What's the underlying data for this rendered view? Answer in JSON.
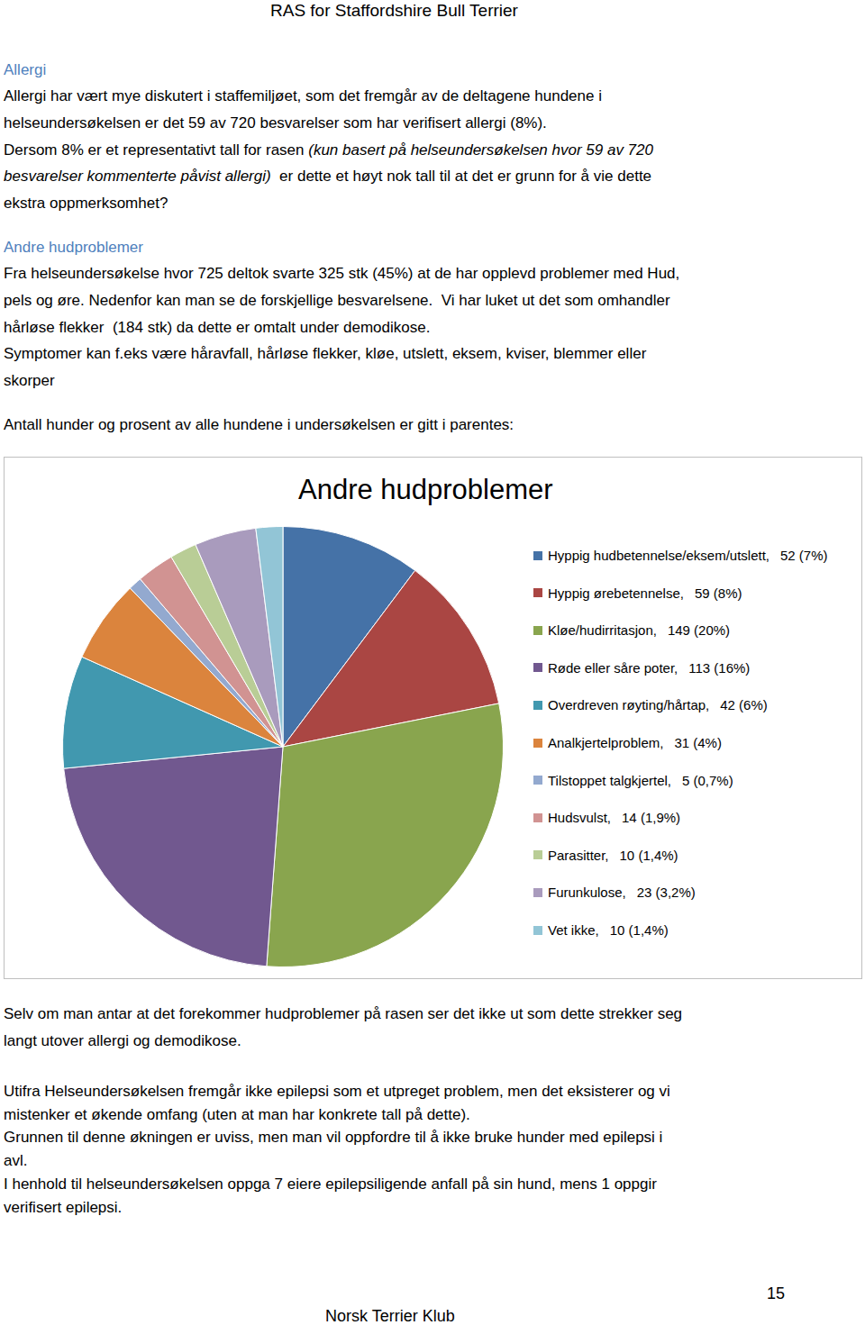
{
  "header": "RAS for Staffordshire Bull Terrier",
  "blocks_before": [
    {
      "heading": "Allergi",
      "lines": [
        "Allergi har vært mye diskutert i staffemiljøet, som det fremgår av de deltagene hundene i",
        "helseundersøkelsen er det 59 av 720 besvarelser som har verifisert allergi (8%).",
        [
          {
            "text": "Dersom 8% er et representativt tall for rasen "
          },
          {
            "text": "(kun basert på helseundersøkelsen hvor 59 av 720",
            "italic": true
          }
        ],
        [
          {
            "text": "besvarelser kommenterte påvist allergi)",
            "italic": true
          },
          {
            "text": "  er dette et høyt nok tall til at det er grunn for å vie dette"
          }
        ],
        "ekstra oppmerksomhet?"
      ]
    },
    {
      "heading": "Andre hudproblemer",
      "lines": [
        "Fra helseundersøkelse hvor 725 deltok svarte 325 stk (45%) at de har opplevd problemer med Hud,",
        "pels og øre. Nedenfor kan man se de forskjellige besvarelsene.  Vi har luket ut det som omhandler",
        "hårløse flekker  (184 stk) da dette er omtalt under demodikose.",
        "Symptomer kan f.eks være håravfall, hårløse flekker, kløe, utslett, eksem, kviser, blemmer eller",
        "skorper"
      ]
    },
    {
      "lines": [
        "Antall hunder og prosent av alle hundene i undersøkelsen er gitt i parentes:"
      ]
    }
  ],
  "chart_data": {
    "type": "pie",
    "title": "Andre hudproblemer",
    "categories": [
      "Hyppig hudbetennelse/eksem/utslett,",
      "Hyppig ørebetennelse,",
      "Kløe/hudirritasjon,",
      "Røde eller såre poter,",
      "Overdreven røyting/hårtap,",
      "Analkjertelproblem,",
      "Tilstoppet talgkjertel,",
      "Hudsvulst,",
      "Parasitter,",
      "Furunkulose,",
      "Vet ikke,"
    ],
    "values": [
      52,
      59,
      149,
      113,
      42,
      31,
      5,
      14,
      10,
      23,
      10
    ],
    "value_labels": [
      "52 (7%)",
      "59 (8%)",
      "149 (20%)",
      "113 (16%)",
      "42 (6%)",
      "31 (4%)",
      "5 (0,7%)",
      "14 (1,9%)",
      "10 (1,4%)",
      "23 (3,2%)",
      "10 (1,4%)"
    ],
    "colors": [
      "#4572a7",
      "#aa4643",
      "#89a54e",
      "#71588f",
      "#4198af",
      "#db843d",
      "#93a9cf",
      "#d19392",
      "#b9cd96",
      "#a99bbd",
      "#92c5d6"
    ],
    "legend": "right"
  },
  "blocks_after": [
    {
      "lines": [
        "Selv om man antar at det forekommer hudproblemer på rasen ser det ikke ut som dette strekker seg",
        "langt utover allergi og demodikose."
      ]
    },
    {
      "lines": [
        "Utifra Helseundersøkelsen fremgår ikke epilepsi som et utpreget problem, men det eksisterer og vi",
        "mistenker et økende omfang (uten at man har konkrete tall på dette).",
        "Grunnen til denne økningen er uviss, men man vil oppfordre til å ikke bruke hunder med epilepsi i",
        "avl.",
        "I henhold til helseundersøkelsen oppga 7 eiere epilepsiligende anfall på sin hund, mens 1 oppgir",
        "verifisert epilepsi."
      ]
    }
  ],
  "page_number": 15,
  "footer": "Norsk Terrier Klub"
}
